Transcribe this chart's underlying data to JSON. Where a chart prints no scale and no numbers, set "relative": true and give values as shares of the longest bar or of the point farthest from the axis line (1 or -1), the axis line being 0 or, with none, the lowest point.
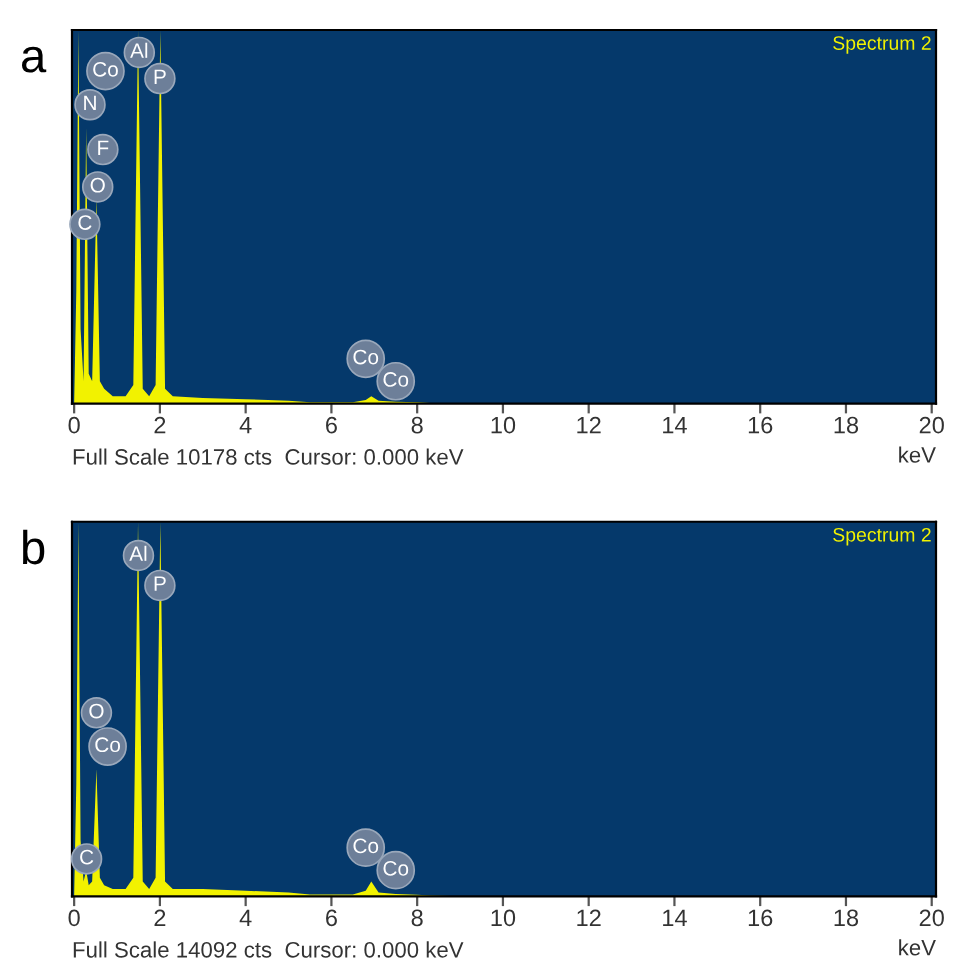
{
  "chart_data": [
    {
      "type": "area",
      "title": "a",
      "xlabel": "keV",
      "relative": true,
      "xlim": [
        -0.05,
        20.1
      ],
      "xticks": [
        0,
        2,
        4,
        6,
        8,
        10,
        12,
        14,
        16,
        18,
        20
      ],
      "x": [
        0,
        0.05,
        0.1,
        0.15,
        0.22,
        0.28,
        0.34,
        0.42,
        0.52,
        0.6,
        0.7,
        0.9,
        1.2,
        1.38,
        1.49,
        1.6,
        1.75,
        1.9,
        2.01,
        2.12,
        2.3,
        3,
        4,
        5,
        5.5,
        6.5,
        6.8,
        6.93,
        7.1,
        7.5,
        8,
        8.3,
        9,
        20
      ],
      "series": [
        {
          "color": "#f2f200",
          "values": [
            0,
            0.3,
            1,
            0.2,
            0.06,
            0.74,
            0.08,
            0.06,
            0.55,
            0.06,
            0.04,
            0.02,
            0.02,
            0.05,
            1,
            0.04,
            0.02,
            0.05,
            1,
            0.04,
            0.02,
            0.015,
            0.012,
            0.008,
            0.004,
            0.004,
            0.01,
            0.02,
            0.008,
            0.005,
            0.004,
            0.002,
            0,
            0
          ]
        }
      ],
      "annotations": [
        "Spectrum 2",
        "Full Scale 10178 cts  Cursor: 0.000 keV",
        {
          "text": "Al",
          "x": 1.52,
          "y": 0.94
        },
        {
          "text": "P",
          "x": 2.0,
          "y": 0.87
        },
        {
          "text": "Co",
          "x": 0.73,
          "y": 0.89
        },
        {
          "text": "N",
          "x": 0.37,
          "y": 0.8
        },
        {
          "text": "F",
          "x": 0.67,
          "y": 0.68
        },
        {
          "text": "O",
          "x": 0.55,
          "y": 0.58
        },
        {
          "text": "C",
          "x": 0.25,
          "y": 0.48
        },
        {
          "text": "Co",
          "x": 6.8,
          "y": 0.12
        },
        {
          "text": "Co",
          "x": 7.5,
          "y": 0.06
        }
      ]
    },
    {
      "type": "area",
      "title": "b",
      "xlabel": "keV",
      "relative": true,
      "xlim": [
        -0.05,
        20.1
      ],
      "xticks": [
        0,
        2,
        4,
        6,
        8,
        10,
        12,
        14,
        16,
        18,
        20
      ],
      "x": [
        0,
        0.05,
        0.1,
        0.15,
        0.22,
        0.28,
        0.34,
        0.42,
        0.52,
        0.6,
        0.7,
        0.9,
        1.2,
        1.38,
        1.49,
        1.6,
        1.75,
        1.9,
        2.01,
        2.12,
        2.3,
        3,
        4,
        5,
        5.5,
        6.5,
        6.8,
        6.93,
        7.1,
        7.5,
        8,
        8.3,
        9,
        20
      ],
      "series": [
        {
          "color": "#f2f200",
          "values": [
            0,
            0.3,
            1,
            0.15,
            0.04,
            0.07,
            0.03,
            0.04,
            0.34,
            0.05,
            0.03,
            0.02,
            0.02,
            0.05,
            1,
            0.04,
            0.02,
            0.05,
            1,
            0.04,
            0.02,
            0.02,
            0.015,
            0.01,
            0.005,
            0.005,
            0.015,
            0.04,
            0.01,
            0.006,
            0.004,
            0.002,
            0,
            0
          ]
        }
      ],
      "annotations": [
        "Spectrum 2",
        "Full Scale 14092 cts  Cursor: 0.000 keV",
        {
          "text": "Al",
          "x": 1.5,
          "y": 0.91
        },
        {
          "text": "P",
          "x": 2.0,
          "y": 0.83
        },
        {
          "text": "O",
          "x": 0.52,
          "y": 0.49
        },
        {
          "text": "Co",
          "x": 0.78,
          "y": 0.4
        },
        {
          "text": "C",
          "x": 0.29,
          "y": 0.1
        },
        {
          "text": "Co",
          "x": 6.8,
          "y": 0.13
        },
        {
          "text": "Co",
          "x": 7.5,
          "y": 0.07
        }
      ]
    }
  ]
}
